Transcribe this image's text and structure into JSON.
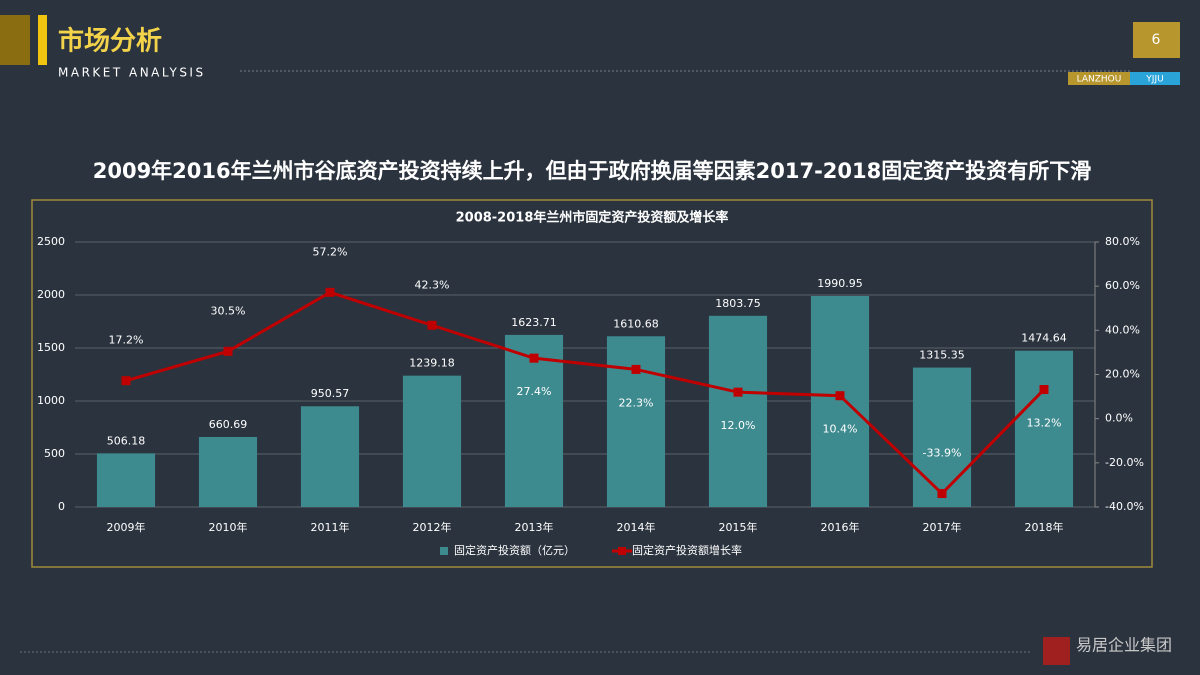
{
  "header": {
    "title": "市场分析",
    "subtitle": "MARKET ANALYSIS",
    "page_number": "6",
    "tag_left": "LANZHOU",
    "tag_right": "YJJU"
  },
  "headline": "2009年2016年兰州市谷底资产投资持续上升，但由于政府换届等因素2017-2018固定资产投资有所下滑",
  "chart_data": {
    "type": "bar",
    "title": "2008-2018年兰州市固定资产投资额及增长率",
    "categories": [
      "2009年",
      "2010年",
      "2011年",
      "2012年",
      "2013年",
      "2014年",
      "2015年",
      "2016年",
      "2017年",
      "2018年"
    ],
    "series": [
      {
        "name": "固定资产投资额（亿元）",
        "type": "bar",
        "color": "#3d8a8f",
        "values": [
          506.18,
          660.69,
          950.57,
          1239.18,
          1623.71,
          1610.68,
          1803.75,
          1990.95,
          1315.35,
          1474.64
        ]
      },
      {
        "name": "固定资产投资额增长率",
        "type": "line",
        "axis": "y2",
        "color": "#c00000",
        "values": [
          17.2,
          30.5,
          57.2,
          42.3,
          27.4,
          22.3,
          12.0,
          10.4,
          -33.9,
          13.2
        ],
        "value_labels": [
          "17.2%",
          "30.5%",
          "57.2%",
          "42.3%",
          "27.4%",
          "22.3%",
          "12.0%",
          "10.4%",
          "-33.9%",
          "13.2%"
        ]
      }
    ],
    "ylim": [
      0,
      2500
    ],
    "yticks": [
      0,
      500,
      1000,
      1500,
      2000,
      2500
    ],
    "y2lim": [
      -40,
      80
    ],
    "y2ticks": [
      {
        "value": -40,
        "label": "-40.0%"
      },
      {
        "value": -20,
        "label": "-20.0%"
      },
      {
        "value": 0,
        "label": "0.0%"
      },
      {
        "value": 20,
        "label": "20.0%"
      },
      {
        "value": 40,
        "label": "40.0%"
      },
      {
        "value": 60,
        "label": "60.0%"
      },
      {
        "value": 80,
        "label": "80.0%"
      }
    ],
    "grid": true,
    "legend": "bottom"
  },
  "footer": {
    "brand": "易居企业集团"
  }
}
